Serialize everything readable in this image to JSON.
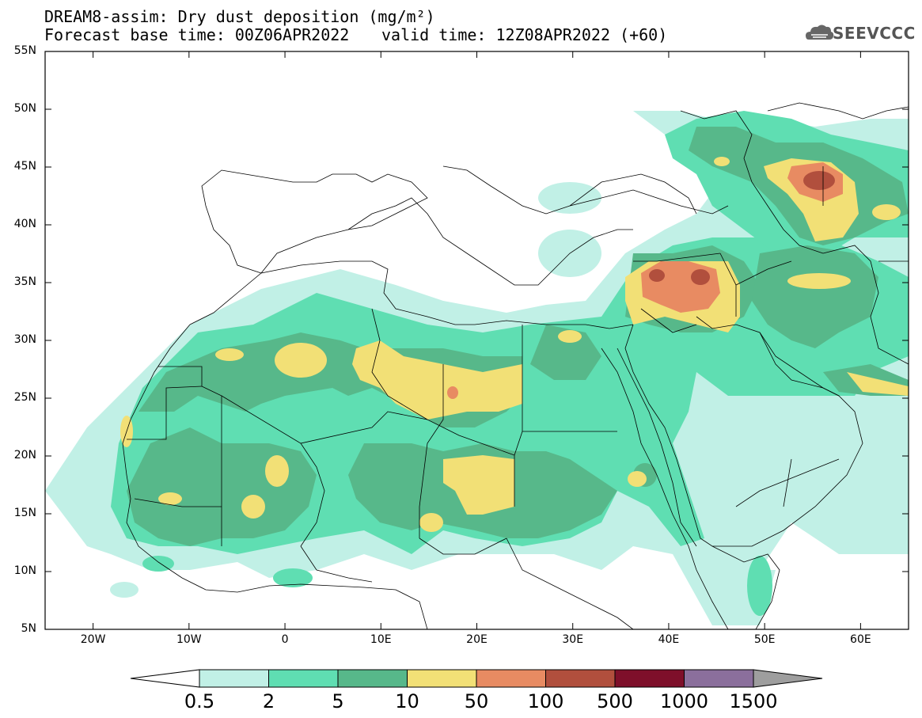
{
  "header": {
    "title_line1": "DREAM8-assim: Dry dust deposition (mg/m²)",
    "title_line2_base": "Forecast base time: 00Z06APR2022",
    "title_line2_valid": "valid time: 12Z08APR2022 (+60)",
    "logo_text": "SEEVCCC"
  },
  "map": {
    "lat_labels": [
      "55N",
      "50N",
      "45N",
      "40N",
      "35N",
      "30N",
      "25N",
      "20N",
      "15N",
      "10N",
      "5N"
    ],
    "lon_labels": [
      "20W",
      "10W",
      "0",
      "10E",
      "20E",
      "30E",
      "40E",
      "50E",
      "60E"
    ],
    "lat_range": [
      5,
      55
    ],
    "lon_range": [
      -25,
      65
    ]
  },
  "colorbar": {
    "labels": [
      "0.5",
      "2",
      "5",
      "10",
      "50",
      "100",
      "500",
      "1000",
      "1500"
    ],
    "colors": [
      "#c1f0e6",
      "#5fdeb2",
      "#57b88a",
      "#f2e076",
      "#e88b62",
      "#b14f3d",
      "#7e0f2a",
      "#8b6f9c",
      "#9e9e9e"
    ]
  }
}
